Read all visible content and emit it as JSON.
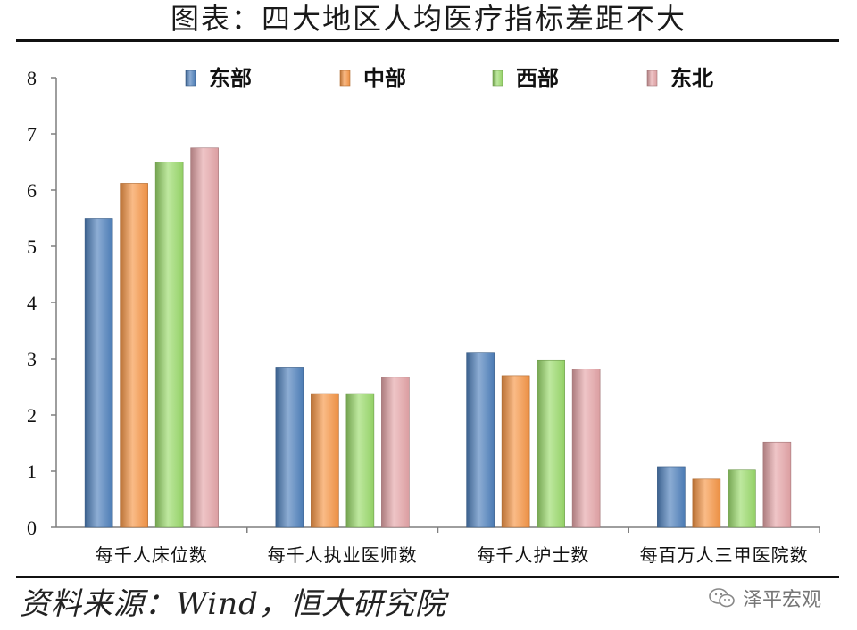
{
  "title": "图表：四大地区人均医疗指标差距不大",
  "source": "资料来源：Wind，恒大研究院",
  "watermark": {
    "icon": "wechat-icon",
    "text": "泽平宏观"
  },
  "chart_data": {
    "type": "bar",
    "categories": [
      "每千人床位数",
      "每千人执业医师数",
      "每千人护士数",
      "每百万人三甲医院数"
    ],
    "series": [
      {
        "name": "东部",
        "color": "#4f81bd",
        "values": [
          5.5,
          2.85,
          3.1,
          1.08
        ]
      },
      {
        "name": "中部",
        "color": "#f79646",
        "values": [
          6.12,
          2.38,
          2.7,
          0.86
        ]
      },
      {
        "name": "西部",
        "color": "#9bdb6b",
        "values": [
          6.5,
          2.38,
          2.98,
          1.02
        ]
      },
      {
        "name": "东北",
        "color": "#e6a6a9",
        "values": [
          6.75,
          2.67,
          2.82,
          1.52
        ]
      }
    ],
    "yticks": [
      "0",
      "1",
      "2",
      "3",
      "4",
      "5",
      "6",
      "7",
      "8"
    ],
    "ylim": [
      0,
      8
    ],
    "grid": false,
    "legend": "top"
  }
}
